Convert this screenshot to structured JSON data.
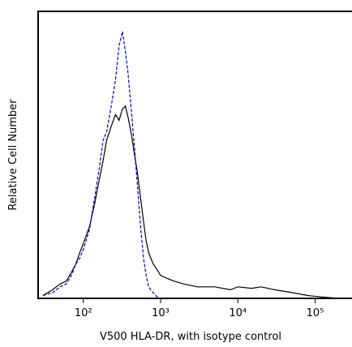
{
  "chart_data": {
    "type": "line",
    "xlabel": "V500 HLA-DR, with isotype control",
    "ylabel": "Relative Cell Number",
    "xscale": "log",
    "xlim": [
      26,
      300000
    ],
    "ylim": [
      0,
      100
    ],
    "xticks": [
      {
        "value": 100,
        "label": "10²"
      },
      {
        "value": 1000,
        "label": "10³"
      },
      {
        "value": 10000,
        "label": "10⁴"
      },
      {
        "value": 100000,
        "label": "10⁵"
      }
    ],
    "series": [
      {
        "color": "#000000",
        "style": "solid",
        "x": [
          30,
          40,
          50,
          60,
          70,
          80,
          90,
          100,
          120,
          140,
          160,
          180,
          200,
          230,
          260,
          290,
          320,
          350,
          380,
          420,
          460,
          500,
          550,
          600,
          650,
          700,
          800,
          900,
          1000,
          1200,
          1500,
          2000,
          3000,
          5000,
          8000,
          10000,
          15000,
          20000,
          30000,
          50000,
          80000,
          120000,
          200000
        ],
        "values": [
          1,
          3,
          5,
          6,
          9,
          12,
          16,
          19,
          25,
          33,
          41,
          48,
          55,
          60,
          64,
          62,
          66,
          67,
          63,
          57,
          50,
          44,
          35,
          27,
          20,
          16,
          12,
          10,
          8,
          7,
          6,
          5,
          4,
          4,
          3,
          4,
          3.5,
          4,
          3,
          2,
          1,
          0.5,
          0
        ]
      },
      {
        "color": "#0000cc",
        "style": "dashed",
        "x": [
          30,
          40,
          50,
          60,
          70,
          80,
          90,
          100,
          120,
          140,
          160,
          180,
          200,
          230,
          260,
          290,
          320,
          350,
          380,
          420,
          460,
          500,
          550,
          600,
          650,
          700,
          800,
          900,
          1000
        ],
        "values": [
          1,
          2,
          4,
          5,
          8,
          12,
          14,
          17,
          24,
          35,
          45,
          55,
          58,
          67,
          76,
          88,
          93,
          86,
          78,
          65,
          52,
          40,
          25,
          14,
          8,
          4,
          2,
          0.5,
          0
        ]
      }
    ]
  }
}
